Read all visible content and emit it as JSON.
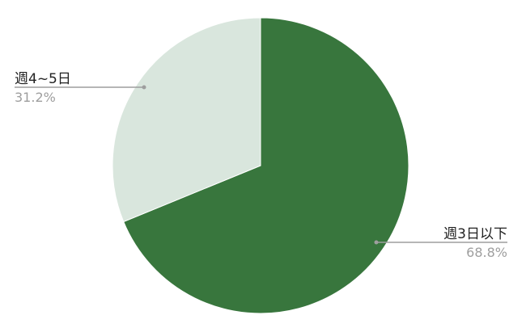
{
  "chart_data": {
    "type": "pie",
    "start": "top",
    "direction": "clockwise",
    "slices": [
      {
        "label": "週3日以下",
        "value": 68.8,
        "value_label": "68.8%",
        "color": "#38763d"
      },
      {
        "label": "週4~5日",
        "value": 31.2,
        "value_label": "31.2%",
        "color": "#d9e6dd"
      }
    ],
    "legend": "callout labels"
  }
}
